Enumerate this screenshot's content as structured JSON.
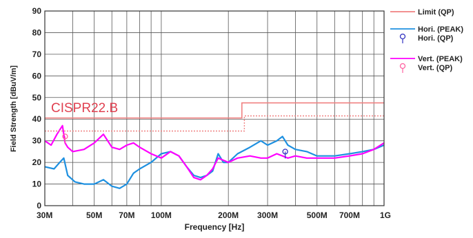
{
  "chart_data": {
    "type": "line",
    "xlabel": "Frequency [Hz]",
    "ylabel": "Field Strength [dBuV/m]",
    "x_scale": "log",
    "xlim": [
      30,
      1000
    ],
    "ylim": [
      0,
      90
    ],
    "grid": true,
    "legend_position": "right",
    "x_ticks": [
      {
        "value": 30,
        "label": "30M"
      },
      {
        "value": 50,
        "label": "50M"
      },
      {
        "value": 70,
        "label": "70M"
      },
      {
        "value": 100,
        "label": "100M"
      },
      {
        "value": 200,
        "label": "200M"
      },
      {
        "value": 300,
        "label": "300M"
      },
      {
        "value": 500,
        "label": "500M"
      },
      {
        "value": 700,
        "label": "700M"
      },
      {
        "value": 1000,
        "label": "1G"
      }
    ],
    "y_ticks": [
      0,
      10,
      20,
      30,
      40,
      50,
      60,
      70,
      80,
      90
    ],
    "annotation": "CISPR22.B",
    "colors": {
      "limit": "#f08080",
      "hori": "#1e90e0",
      "vert": "#ff00ff",
      "hori_qp": "#3030c0",
      "vert_qp": "#ff60a0",
      "annotation": "#e04050",
      "grid": "#555555"
    },
    "series": [
      {
        "name": "Limit (QP)",
        "style": "solid",
        "x": [
          30,
          230,
          230,
          1000
        ],
        "y": [
          40.5,
          40.5,
          47.5,
          47.5
        ]
      },
      {
        "name": "Limit",
        "style": "dotted",
        "x": [
          30,
          236,
          236,
          1000
        ],
        "y": [
          34.5,
          34.5,
          41.5,
          41.5
        ]
      },
      {
        "name": "Hori. (PEAK)",
        "style": "solid",
        "x": [
          30,
          33,
          35,
          36.5,
          38,
          41,
          45,
          50,
          55,
          60,
          65,
          70,
          75,
          80,
          90,
          100,
          110,
          120,
          130,
          140,
          150,
          160,
          170,
          180,
          190,
          200,
          220,
          250,
          280,
          300,
          330,
          350,
          370,
          400,
          450,
          500,
          600,
          700,
          800,
          900,
          1000
        ],
        "y": [
          18,
          17,
          20,
          22,
          14,
          11,
          10,
          10,
          12,
          9,
          8,
          10,
          15,
          17,
          20,
          24,
          25,
          23,
          18,
          14,
          13,
          14,
          16,
          24,
          20,
          20,
          24,
          27,
          30,
          28,
          30,
          32,
          28,
          26,
          25,
          23,
          23,
          24,
          25,
          26,
          28
        ]
      },
      {
        "name": "Vert. (PEAK)",
        "style": "solid",
        "x": [
          30,
          32,
          34,
          36,
          37,
          38,
          40,
          45,
          50,
          55,
          60,
          65,
          70,
          75,
          80,
          90,
          100,
          110,
          120,
          130,
          140,
          150,
          160,
          170,
          180,
          190,
          200,
          220,
          250,
          280,
          300,
          330,
          350,
          370,
          400,
          450,
          500,
          600,
          700,
          800,
          900,
          1000
        ],
        "y": [
          30,
          28,
          33,
          37,
          29,
          27,
          25,
          26,
          29,
          33,
          27,
          26,
          28,
          29,
          27,
          24,
          22,
          25,
          23,
          18,
          13,
          12,
          14,
          17,
          22,
          21,
          20,
          22,
          23,
          22,
          22,
          24,
          23,
          22,
          23,
          22,
          22,
          22,
          23,
          24,
          26,
          29
        ]
      },
      {
        "name": "Hori. (QP)",
        "style": "marker",
        "x": [
          360
        ],
        "y": [
          25
        ]
      },
      {
        "name": "Vert. (QP)",
        "style": "marker",
        "x": [
          37
        ],
        "y": [
          32
        ]
      }
    ]
  }
}
